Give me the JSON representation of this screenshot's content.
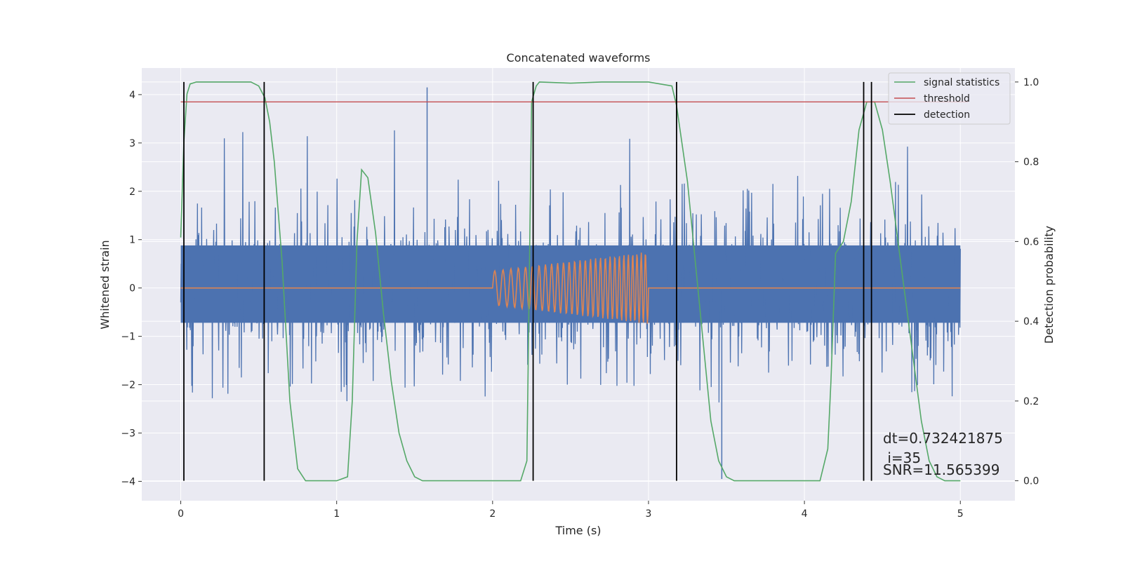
{
  "chart_data": {
    "type": "line",
    "title": "Concatenated waveforms",
    "xlabel": "Time (s)",
    "ylabel": "Whitened strain",
    "y2label": "Detection probability",
    "xlim": [
      -0.25,
      5.35
    ],
    "ylim": [
      -4.4,
      4.55
    ],
    "y2lim": [
      -0.05,
      1.035
    ],
    "x_ticks": [
      0,
      1,
      2,
      3,
      4,
      5
    ],
    "x_tick_labels": [
      "0",
      "1",
      "2",
      "3",
      "4",
      "5"
    ],
    "y_ticks": [
      -4,
      -3,
      -2,
      -1,
      0,
      1,
      2,
      3,
      4
    ],
    "y_tick_labels": [
      "−4",
      "−3",
      "−2",
      "−1",
      "0",
      "1",
      "2",
      "3",
      "4"
    ],
    "y2_ticks": [
      0.0,
      0.2,
      0.4,
      0.6,
      0.8,
      1.0
    ],
    "y2_tick_labels": [
      "0.0",
      "0.2",
      "0.4",
      "0.6",
      "0.8",
      "1.0"
    ],
    "grid": true,
    "legend_position": "top-right",
    "legend": [
      {
        "label": "signal statistics",
        "color": "#55a868"
      },
      {
        "label": "threshold",
        "color": "#c44e52"
      },
      {
        "label": "detection",
        "color": "#000000"
      }
    ],
    "colors": {
      "strain": "#4c72b0",
      "injection": "#dd8452",
      "statistic": "#55a868",
      "threshold": "#c44e52",
      "detection": "#000000",
      "background": "#eaeaf2",
      "grid": "#ffffff"
    },
    "strain_noise": {
      "x_range": [
        0,
        5
      ],
      "core_band": [
        -0.72,
        0.88
      ],
      "max_peak": 4.15,
      "min_trough": -3.95
    },
    "injection": {
      "x": [
        2.0,
        2.25,
        2.5,
        2.75,
        3.0
      ],
      "amplitude": [
        0.35,
        0.45,
        0.55,
        0.65,
        0.75
      ],
      "y_baseline": 0,
      "x_range": [
        0,
        5
      ]
    },
    "statistic": {
      "x": [
        0.0,
        0.02,
        0.04,
        0.06,
        0.1,
        0.3,
        0.45,
        0.5,
        0.54,
        0.57,
        0.6,
        0.65,
        0.7,
        0.75,
        0.8,
        1.0,
        1.07,
        1.1,
        1.13,
        1.16,
        1.2,
        1.25,
        1.3,
        1.35,
        1.4,
        1.45,
        1.5,
        1.55,
        2.0,
        2.18,
        2.22,
        2.25,
        2.28,
        2.3,
        2.5,
        2.7,
        3.0,
        3.15,
        3.18,
        3.25,
        3.3,
        3.35,
        3.4,
        3.45,
        3.5,
        3.55,
        4.1,
        4.15,
        4.17,
        4.2,
        4.25,
        4.3,
        4.35,
        4.4,
        4.45,
        4.5,
        4.55,
        4.6,
        4.65,
        4.7,
        4.75,
        4.8,
        4.85,
        4.9,
        5.0
      ],
      "y": [
        0.61,
        0.85,
        0.97,
        0.995,
        1.0,
        1.0,
        1.0,
        0.99,
        0.96,
        0.9,
        0.8,
        0.55,
        0.2,
        0.03,
        0.0,
        0.0,
        0.01,
        0.2,
        0.6,
        0.78,
        0.76,
        0.62,
        0.42,
        0.25,
        0.12,
        0.05,
        0.01,
        0.0,
        0.0,
        0.0,
        0.05,
        0.95,
        0.99,
        1.0,
        0.997,
        1.0,
        1.0,
        0.99,
        0.94,
        0.75,
        0.55,
        0.35,
        0.15,
        0.05,
        0.01,
        0.0,
        0.0,
        0.08,
        0.25,
        0.57,
        0.6,
        0.7,
        0.88,
        0.95,
        0.95,
        0.88,
        0.75,
        0.6,
        0.45,
        0.3,
        0.15,
        0.05,
        0.01,
        0.0,
        0.0
      ]
    },
    "threshold": {
      "x": [
        0,
        5.05
      ],
      "y": 0.95
    },
    "detections": [
      0.02,
      0.535,
      2.26,
      3.18,
      4.38,
      4.43
    ],
    "detection_range": [
      0.0,
      1.0
    ],
    "annotations": {
      "dt": "dt=0.732421875",
      "i": " i=35",
      "snr": "SNR=11.565399"
    }
  }
}
